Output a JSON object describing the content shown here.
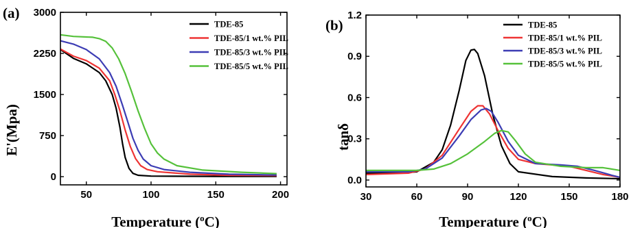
{
  "chart_data": [
    {
      "type": "line",
      "panel_label": "(a)",
      "xlabel": "Temperature (",
      "xlabel_sup": "o",
      "xlabel_tail": "C)",
      "ylabel": "E'(Mpa)",
      "xlim": [
        30,
        205
      ],
      "ylim": [
        -150,
        3000
      ],
      "xticks": [
        50,
        100,
        150,
        200
      ],
      "yticks": [
        0,
        750,
        1500,
        2250,
        3000
      ],
      "legend_position": "top-right",
      "series": [
        {
          "name": "TDE-85",
          "color": "#000000",
          "points": [
            [
              30,
              2320
            ],
            [
              40,
              2160
            ],
            [
              50,
              2060
            ],
            [
              60,
              1900
            ],
            [
              65,
              1750
            ],
            [
              70,
              1500
            ],
            [
              73,
              1250
            ],
            [
              76,
              900
            ],
            [
              78,
              600
            ],
            [
              80,
              350
            ],
            [
              83,
              150
            ],
            [
              86,
              60
            ],
            [
              90,
              25
            ],
            [
              100,
              10
            ],
            [
              150,
              5
            ],
            [
              197,
              5
            ]
          ]
        },
        {
          "name": "TDE-85/1 wt.% PIL",
          "color": "#ee3333",
          "points": [
            [
              30,
              2330
            ],
            [
              40,
              2200
            ],
            [
              50,
              2120
            ],
            [
              60,
              1980
            ],
            [
              68,
              1750
            ],
            [
              72,
              1500
            ],
            [
              76,
              1200
            ],
            [
              80,
              850
            ],
            [
              84,
              550
            ],
            [
              88,
              330
            ],
            [
              92,
              200
            ],
            [
              97,
              130
            ],
            [
              105,
              90
            ],
            [
              130,
              45
            ],
            [
              160,
              25
            ],
            [
              197,
              20
            ]
          ]
        },
        {
          "name": "TDE-85/3 wt.% PIL",
          "color": "#3c3cb4",
          "points": [
            [
              30,
              2480
            ],
            [
              40,
              2420
            ],
            [
              50,
              2320
            ],
            [
              60,
              2150
            ],
            [
              68,
              1900
            ],
            [
              73,
              1650
            ],
            [
              78,
              1300
            ],
            [
              82,
              1000
            ],
            [
              86,
              700
            ],
            [
              90,
              480
            ],
            [
              94,
              320
            ],
            [
              100,
              200
            ],
            [
              110,
              130
            ],
            [
              130,
              80
            ],
            [
              160,
              45
            ],
            [
              197,
              30
            ]
          ]
        },
        {
          "name": "TDE-85/5 wt.% PIL",
          "color": "#55c13a",
          "points": [
            [
              30,
              2590
            ],
            [
              40,
              2560
            ],
            [
              55,
              2545
            ],
            [
              60,
              2520
            ],
            [
              65,
              2470
            ],
            [
              70,
              2350
            ],
            [
              75,
              2150
            ],
            [
              80,
              1880
            ],
            [
              85,
              1550
            ],
            [
              90,
              1200
            ],
            [
              95,
              880
            ],
            [
              100,
              600
            ],
            [
              105,
              430
            ],
            [
              110,
              320
            ],
            [
              120,
              200
            ],
            [
              140,
              120
            ],
            [
              170,
              80
            ],
            [
              197,
              55
            ]
          ]
        }
      ]
    },
    {
      "type": "line",
      "panel_label": "(b)",
      "xlabel": "Temperature (",
      "xlabel_sup": "o",
      "xlabel_tail": "C)",
      "ylabel": "tanδ",
      "xlim": [
        30,
        180
      ],
      "ylim": [
        -0.05,
        1.2
      ],
      "xticks": [
        30,
        60,
        90,
        120,
        150,
        180
      ],
      "yticks": [
        0.0,
        0.3,
        0.6,
        0.9,
        1.2
      ],
      "ytick_labels": [
        "0.0",
        "0.3",
        "0.6",
        "0.9",
        "1.2"
      ],
      "legend_position": "top-right",
      "series": [
        {
          "name": "TDE-85",
          "color": "#000000",
          "points": [
            [
              30,
              0.05
            ],
            [
              50,
              0.05
            ],
            [
              60,
              0.06
            ],
            [
              70,
              0.13
            ],
            [
              75,
              0.22
            ],
            [
              80,
              0.4
            ],
            [
              85,
              0.65
            ],
            [
              89,
              0.87
            ],
            [
              92,
              0.945
            ],
            [
              94,
              0.95
            ],
            [
              96,
              0.92
            ],
            [
              100,
              0.76
            ],
            [
              105,
              0.47
            ],
            [
              110,
              0.25
            ],
            [
              115,
              0.12
            ],
            [
              120,
              0.06
            ],
            [
              140,
              0.025
            ],
            [
              160,
              0.015
            ],
            [
              180,
              0.01
            ]
          ]
        },
        {
          "name": "TDE-85/1 wt.% PIL",
          "color": "#ee3333",
          "points": [
            [
              30,
              0.04
            ],
            [
              55,
              0.05
            ],
            [
              65,
              0.08
            ],
            [
              75,
              0.18
            ],
            [
              85,
              0.37
            ],
            [
              92,
              0.5
            ],
            [
              96,
              0.54
            ],
            [
              99,
              0.54
            ],
            [
              103,
              0.48
            ],
            [
              108,
              0.36
            ],
            [
              114,
              0.23
            ],
            [
              120,
              0.15
            ],
            [
              130,
              0.12
            ],
            [
              150,
              0.1
            ],
            [
              160,
              0.07
            ],
            [
              170,
              0.04
            ],
            [
              180,
              0.02
            ]
          ]
        },
        {
          "name": "TDE-85/3 wt.% PIL",
          "color": "#3c3cb4",
          "points": [
            [
              30,
              0.06
            ],
            [
              55,
              0.06
            ],
            [
              65,
              0.08
            ],
            [
              75,
              0.16
            ],
            [
              85,
              0.32
            ],
            [
              92,
              0.44
            ],
            [
              98,
              0.51
            ],
            [
              101,
              0.52
            ],
            [
              104,
              0.5
            ],
            [
              108,
              0.42
            ],
            [
              114,
              0.28
            ],
            [
              120,
              0.18
            ],
            [
              130,
              0.12
            ],
            [
              145,
              0.11
            ],
            [
              155,
              0.1
            ],
            [
              165,
              0.07
            ],
            [
              175,
              0.035
            ],
            [
              180,
              0.02
            ]
          ]
        },
        {
          "name": "TDE-85/5 wt.% PIL",
          "color": "#55c13a",
          "points": [
            [
              30,
              0.07
            ],
            [
              60,
              0.07
            ],
            [
              70,
              0.08
            ],
            [
              80,
              0.12
            ],
            [
              90,
              0.19
            ],
            [
              100,
              0.28
            ],
            [
              106,
              0.34
            ],
            [
              110,
              0.36
            ],
            [
              114,
              0.35
            ],
            [
              118,
              0.29
            ],
            [
              124,
              0.19
            ],
            [
              130,
              0.13
            ],
            [
              145,
              0.1
            ],
            [
              160,
              0.09
            ],
            [
              170,
              0.09
            ],
            [
              180,
              0.07
            ]
          ]
        }
      ]
    }
  ]
}
